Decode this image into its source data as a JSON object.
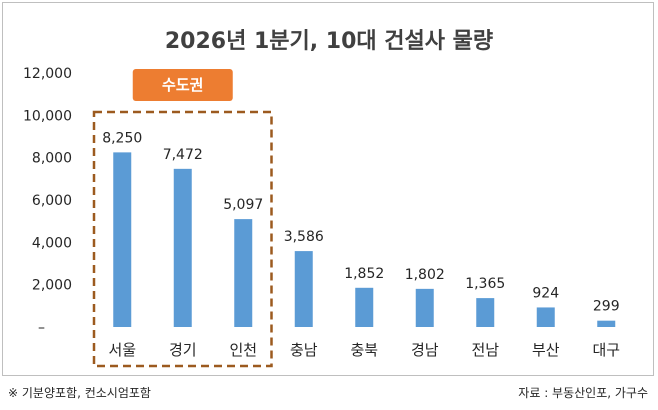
{
  "chart_data": {
    "type": "bar",
    "title": "2026년 1분기, 10대 건설사 물량",
    "categories": [
      "서울",
      "경기",
      "인천",
      "충남",
      "충북",
      "경남",
      "전남",
      "부산",
      "대구"
    ],
    "values": [
      8250,
      7472,
      5097,
      3586,
      1852,
      1802,
      1365,
      924,
      299
    ],
    "value_labels": [
      "8,250",
      "7,472",
      "5,097",
      "3,586",
      "1,852",
      "1,802",
      "1,365",
      "924",
      "299"
    ],
    "y_ticks": [
      "–",
      "2,000",
      "4,000",
      "6,000",
      "8,000",
      "10,000",
      "12,000"
    ],
    "ylim": [
      0,
      12000
    ],
    "bar_color": "#5b9bd5",
    "grid": false,
    "legend": "none",
    "highlight": {
      "label": "수도권",
      "categories": [
        "서울",
        "경기",
        "인천"
      ],
      "box_color": "#9c5a1f",
      "badge_color": "#ed7d31"
    }
  },
  "footnote": "※ 기분양포함, 컨소시엄포함",
  "source": "자료 : 부동산인포, 가구수"
}
